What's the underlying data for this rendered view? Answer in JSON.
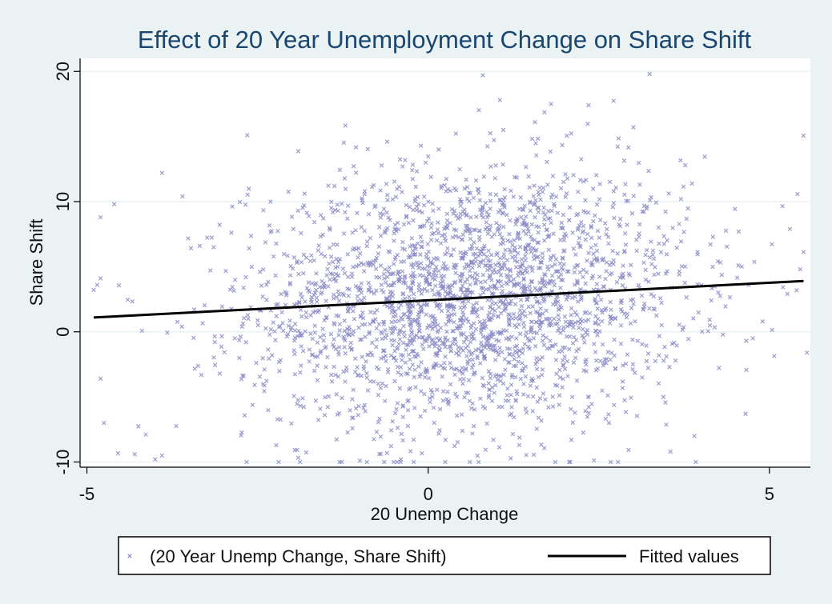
{
  "chart_data": {
    "type": "scatter",
    "title": "Effect of 20 Year Unemployment Change on Share Shift",
    "xlabel": "20 Unemp Change",
    "ylabel": "Share Shift",
    "xlim": [
      -5.1,
      5.6
    ],
    "ylim": [
      -10.4,
      21.0
    ],
    "x_ticks": [
      -5,
      0,
      5
    ],
    "x_tick_labels": [
      "-5",
      "0",
      "5"
    ],
    "y_ticks": [
      -10,
      0,
      10,
      20
    ],
    "y_tick_labels": [
      "-10",
      "0",
      "10",
      "20"
    ],
    "grid": "horizontal",
    "legend_position": "bottom",
    "series": [
      {
        "name": "(20 Year Unemp Change, Share Shift)",
        "kind": "scatter",
        "marker": "x",
        "color": "#8a8ac6",
        "count": 2600,
        "center": [
          0.6,
          2.6
        ],
        "sd": [
          1.6,
          5.0
        ],
        "points": [
          [
            0.8,
            19.7
          ],
          [
            1.05,
            17.8
          ],
          [
            1.8,
            17.5
          ],
          [
            2.35,
            17.4
          ],
          [
            -2.65,
            15.1
          ],
          [
            -0.6,
            14.6
          ],
          [
            -3.9,
            12.2
          ],
          [
            -3.6,
            10.4
          ],
          [
            -4.6,
            9.8
          ],
          [
            -4.8,
            8.8
          ],
          [
            -4.8,
            4.1
          ],
          [
            -4.85,
            3.6
          ],
          [
            -4.8,
            -3.6
          ],
          [
            -4.75,
            -7.0
          ],
          [
            -4.3,
            -9.4
          ],
          [
            -4.0,
            -9.8
          ],
          [
            -3.9,
            -9.5
          ],
          [
            4.55,
            7.7
          ],
          [
            5.3,
            7.9
          ],
          [
            5.55,
            -1.6
          ],
          [
            4.65,
            -6.3
          ],
          [
            4.9,
            0.8
          ],
          [
            3.55,
            -9.2
          ],
          [
            3.9,
            -8.0
          ],
          [
            3.1,
            11.3
          ],
          [
            3.25,
            10.1
          ],
          [
            -0.4,
            -9.8
          ],
          [
            0.25,
            -10.0
          ],
          [
            -1.0,
            -9.9
          ],
          [
            1.1,
            15.5
          ]
        ]
      },
      {
        "name": "Fitted values",
        "kind": "line",
        "color": "#000000",
        "x": [
          -4.9,
          5.5
        ],
        "y": [
          1.1,
          3.9
        ]
      }
    ]
  },
  "legend": {
    "items": [
      {
        "label": "(20 Year Unemp Change, Share Shift)",
        "marker": "x"
      },
      {
        "label": "Fitted values",
        "marker": "line"
      }
    ]
  }
}
